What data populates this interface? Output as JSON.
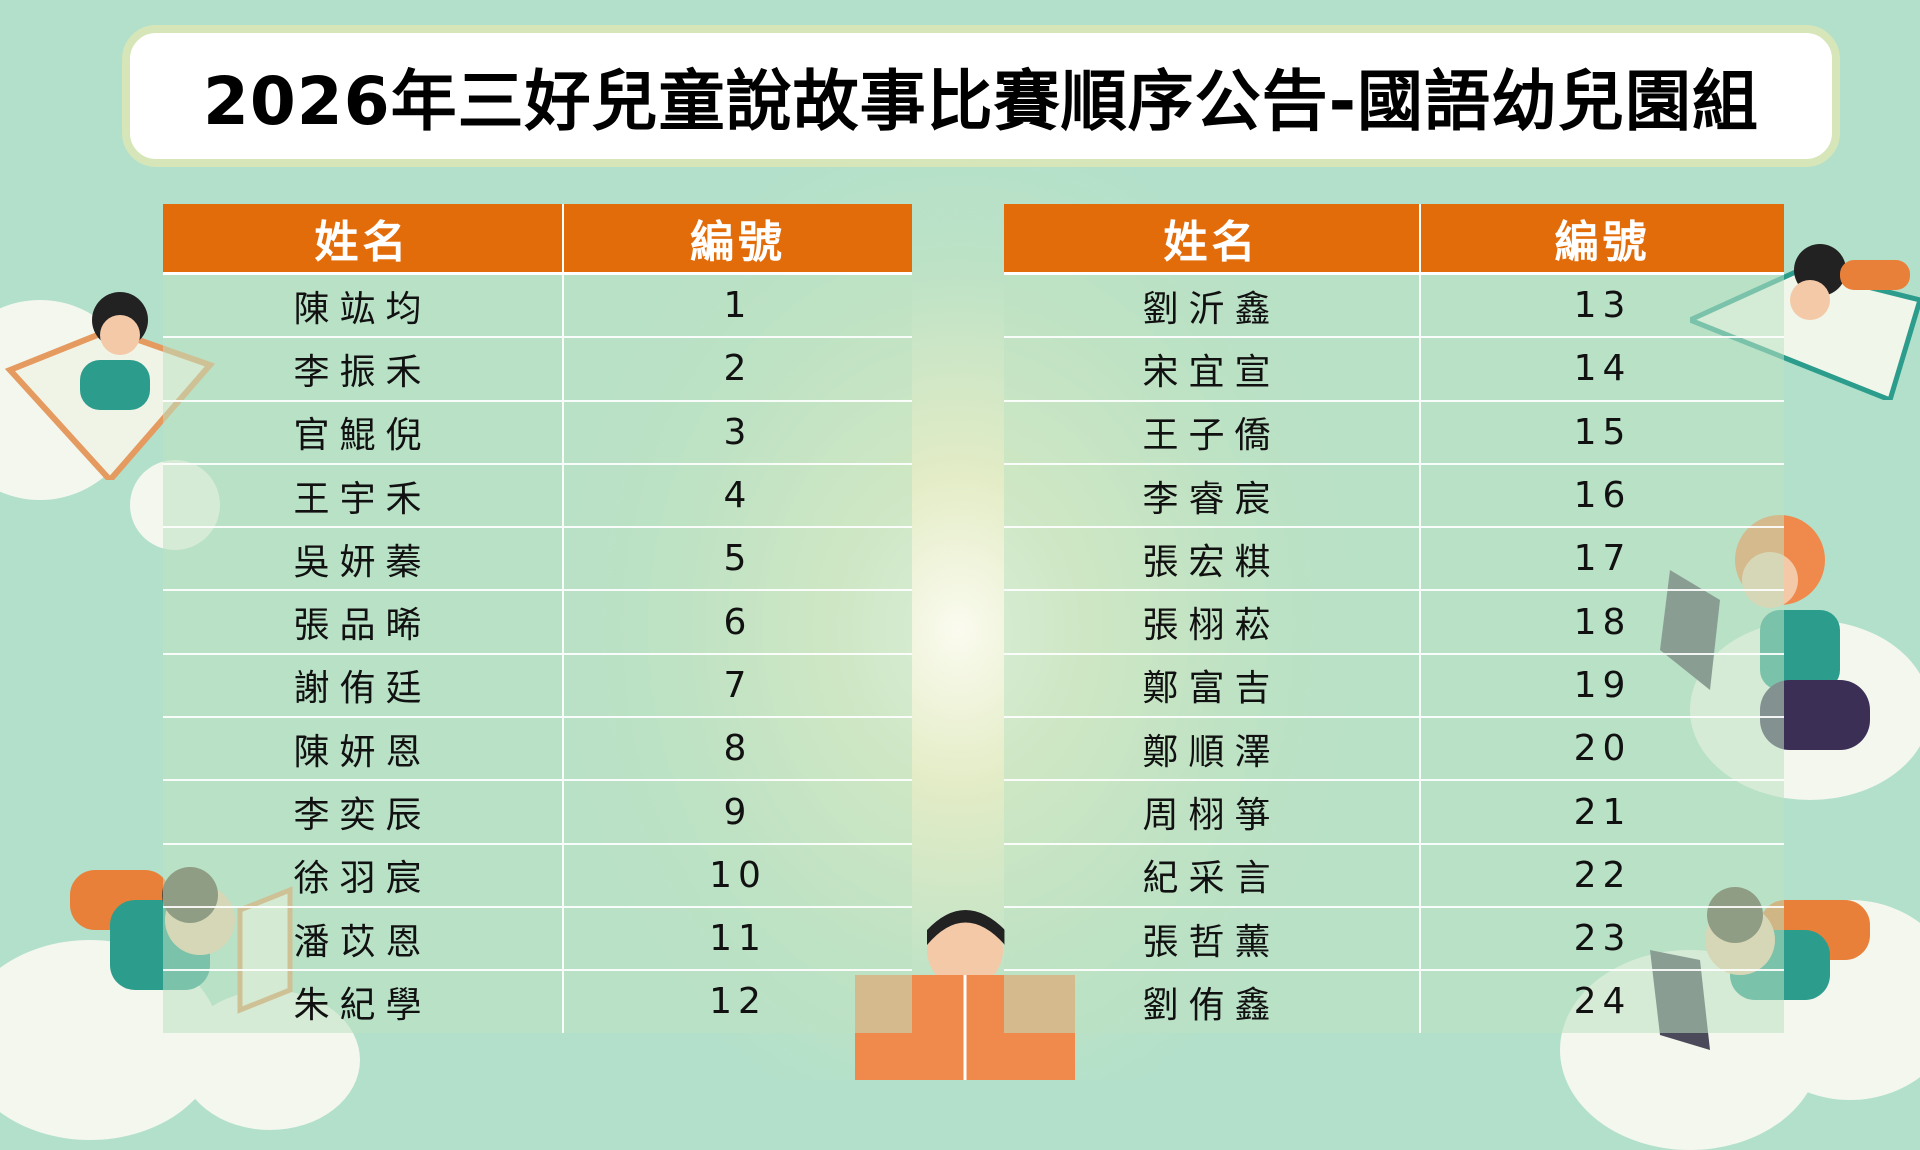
{
  "title": "2026年三好兒童說故事比賽順序公告-國語幼兒園組",
  "colors": {
    "header": "#e36c0a",
    "background": "#b2e0cb",
    "title_border": "#d6e6b8"
  },
  "left_table": {
    "headers": [
      "姓名",
      "編號"
    ],
    "rows": [
      {
        "name": "陳竑均",
        "number": "1"
      },
      {
        "name": "李振禾",
        "number": "2"
      },
      {
        "name": "官鯤倪",
        "number": "3"
      },
      {
        "name": "王宇禾",
        "number": "4"
      },
      {
        "name": "吳妍蓁",
        "number": "5"
      },
      {
        "name": "張品晞",
        "number": "6"
      },
      {
        "name": "謝侑廷",
        "number": "7"
      },
      {
        "name": "陳妍恩",
        "number": "8"
      },
      {
        "name": "李奕辰",
        "number": "9"
      },
      {
        "name": "徐羽宸",
        "number": "10"
      },
      {
        "name": "潘苡恩",
        "number": "11"
      },
      {
        "name": "朱紀學",
        "number": "12"
      }
    ]
  },
  "right_table": {
    "headers": [
      "姓名",
      "編號"
    ],
    "rows": [
      {
        "name": "劉沂鑫",
        "number": "13"
      },
      {
        "name": "宋宜宣",
        "number": "14"
      },
      {
        "name": "王子僑",
        "number": "15"
      },
      {
        "name": "李睿宸",
        "number": "16"
      },
      {
        "name": "張宏粸",
        "number": "17"
      },
      {
        "name": "張栩菘",
        "number": "18"
      },
      {
        "name": "鄭富吉",
        "number": "19"
      },
      {
        "name": "鄭順澤",
        "number": "20"
      },
      {
        "name": "周栩箏",
        "number": "21"
      },
      {
        "name": "紀采言",
        "number": "22"
      },
      {
        "name": "張哲薰",
        "number": "23"
      },
      {
        "name": "劉侑鑫",
        "number": "24"
      }
    ]
  }
}
